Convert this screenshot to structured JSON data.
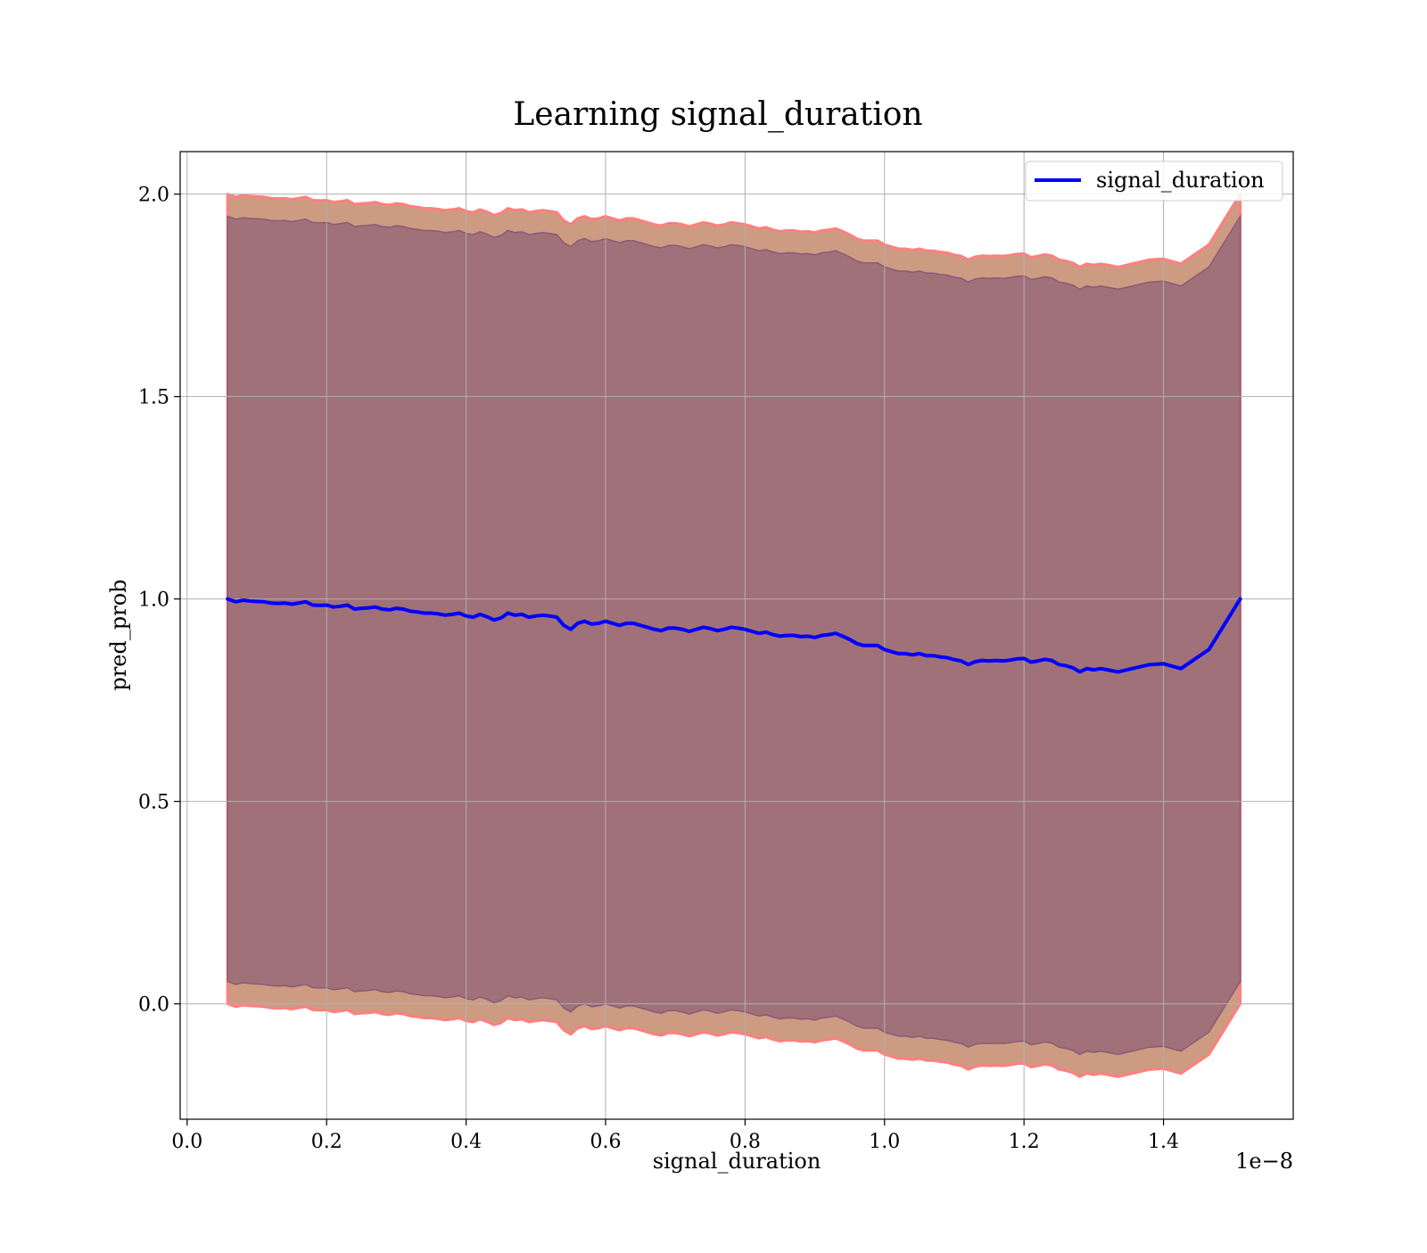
{
  "chart_data": {
    "type": "line",
    "title": "Learning signal_duration",
    "xlabel": "signal_duration",
    "ylabel": "pred_prob",
    "x_offset_label": "1e−8",
    "xlim": [
      -0.01,
      1.586
    ],
    "ylim": [
      -0.285,
      2.105
    ],
    "x_ticks": [
      0.0,
      0.2,
      0.4,
      0.6,
      0.8,
      1.0,
      1.2,
      1.4
    ],
    "x_tick_labels": [
      "0.0",
      "0.2",
      "0.4",
      "0.6",
      "0.8",
      "1.0",
      "1.2",
      "1.4"
    ],
    "y_ticks": [
      0.0,
      0.5,
      1.0,
      1.5,
      2.0
    ],
    "y_tick_labels": [
      "0.0",
      "0.5",
      "1.0",
      "1.5",
      "2.0"
    ],
    "grid": true,
    "legend_position": "top-right",
    "series": [
      {
        "name": "signal_duration",
        "color": "#0000ff",
        "x": [
          0.058,
          0.07,
          0.08,
          0.09,
          0.1,
          0.11,
          0.12,
          0.13,
          0.14,
          0.15,
          0.16,
          0.17,
          0.18,
          0.19,
          0.2,
          0.21,
          0.22,
          0.23,
          0.24,
          0.25,
          0.26,
          0.27,
          0.28,
          0.29,
          0.3,
          0.31,
          0.32,
          0.33,
          0.34,
          0.35,
          0.36,
          0.37,
          0.38,
          0.39,
          0.4,
          0.41,
          0.42,
          0.43,
          0.44,
          0.45,
          0.46,
          0.47,
          0.48,
          0.49,
          0.5,
          0.51,
          0.52,
          0.53,
          0.54,
          0.55,
          0.56,
          0.57,
          0.58,
          0.59,
          0.6,
          0.61,
          0.62,
          0.63,
          0.64,
          0.65,
          0.66,
          0.67,
          0.68,
          0.69,
          0.7,
          0.71,
          0.72,
          0.73,
          0.74,
          0.75,
          0.76,
          0.77,
          0.78,
          0.79,
          0.8,
          0.81,
          0.82,
          0.83,
          0.84,
          0.85,
          0.86,
          0.87,
          0.88,
          0.89,
          0.9,
          0.91,
          0.92,
          0.93,
          0.94,
          0.95,
          0.96,
          0.97,
          0.98,
          0.99,
          1.0,
          1.01,
          1.02,
          1.03,
          1.04,
          1.05,
          1.06,
          1.07,
          1.08,
          1.09,
          1.1,
          1.11,
          1.12,
          1.13,
          1.14,
          1.15,
          1.16,
          1.17,
          1.18,
          1.19,
          1.2,
          1.21,
          1.22,
          1.23,
          1.24,
          1.25,
          1.26,
          1.27,
          1.28,
          1.29,
          1.3,
          1.31,
          1.32,
          1.335,
          1.36,
          1.38,
          1.4,
          1.425,
          1.465,
          1.51
        ],
        "values": [
          1.0,
          0.993,
          0.997,
          0.995,
          0.994,
          0.993,
          0.99,
          0.989,
          0.99,
          0.987,
          0.99,
          0.993,
          0.985,
          0.984,
          0.985,
          0.98,
          0.982,
          0.985,
          0.975,
          0.977,
          0.978,
          0.98,
          0.975,
          0.973,
          0.977,
          0.975,
          0.97,
          0.968,
          0.965,
          0.965,
          0.963,
          0.96,
          0.962,
          0.965,
          0.958,
          0.955,
          0.962,
          0.956,
          0.948,
          0.953,
          0.965,
          0.96,
          0.962,
          0.955,
          0.958,
          0.96,
          0.958,
          0.955,
          0.935,
          0.925,
          0.94,
          0.945,
          0.938,
          0.94,
          0.945,
          0.94,
          0.935,
          0.94,
          0.94,
          0.935,
          0.93,
          0.925,
          0.922,
          0.928,
          0.928,
          0.925,
          0.92,
          0.925,
          0.93,
          0.927,
          0.922,
          0.925,
          0.93,
          0.928,
          0.925,
          0.92,
          0.915,
          0.918,
          0.912,
          0.908,
          0.91,
          0.91,
          0.907,
          0.908,
          0.905,
          0.91,
          0.912,
          0.915,
          0.908,
          0.9,
          0.89,
          0.885,
          0.885,
          0.885,
          0.875,
          0.87,
          0.865,
          0.865,
          0.862,
          0.865,
          0.86,
          0.86,
          0.857,
          0.855,
          0.85,
          0.847,
          0.838,
          0.845,
          0.848,
          0.847,
          0.848,
          0.847,
          0.849,
          0.852,
          0.853,
          0.844,
          0.847,
          0.851,
          0.848,
          0.838,
          0.835,
          0.83,
          0.82,
          0.828,
          0.825,
          0.828,
          0.825,
          0.82,
          0.83,
          0.838,
          0.84,
          0.828,
          0.875,
          1.0
        ]
      }
    ],
    "bands": [
      {
        "outer_color": "#ff7f7f",
        "fill_color": "#cd9b82",
        "half_width": 1.0,
        "lower_offset": 0.0,
        "upper_offset": 0.0
      },
      {
        "fill_color": "#a1717a",
        "edge_color": "#8a5a78",
        "half_width": 0.945
      }
    ]
  }
}
